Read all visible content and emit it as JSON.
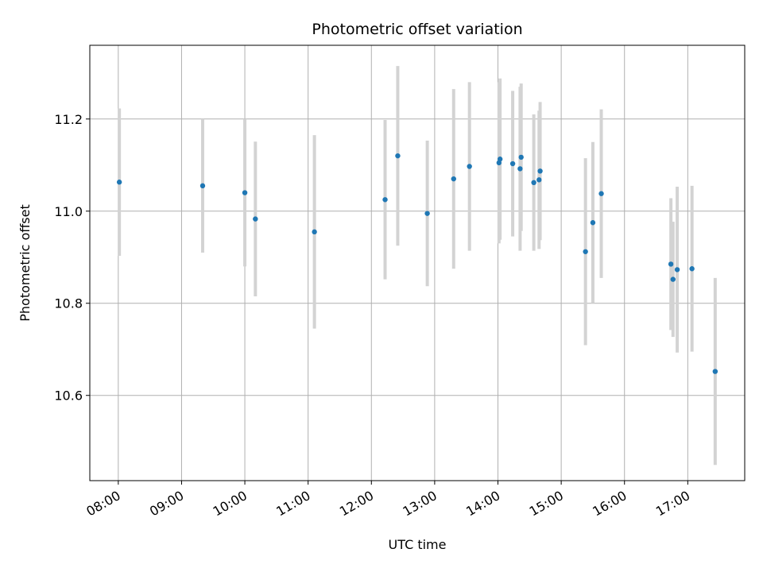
{
  "chart_data": {
    "type": "scatter",
    "title": "Photometric offset variation",
    "xlabel": "UTC time",
    "ylabel": "Photometric offset",
    "x_tick_labels": [
      "08:00",
      "09:00",
      "10:00",
      "11:00",
      "12:00",
      "13:00",
      "14:00",
      "15:00",
      "16:00",
      "17:00"
    ],
    "x_ticks": [
      "08:00",
      "09:00",
      "10:00",
      "11:00",
      "12:00",
      "13:00",
      "14:00",
      "15:00",
      "16:00",
      "17:00"
    ],
    "y_ticks": [
      10.6,
      10.8,
      11.0,
      11.2
    ],
    "y_tick_labels": [
      "10.6",
      "10.8",
      "11.0",
      "11.2"
    ],
    "xlim": [
      "07:33",
      "17:54"
    ],
    "ylim": [
      10.415,
      11.36
    ],
    "grid": true,
    "point_color": "#1f77b4",
    "errorbar_color": "#d3d3d3",
    "points": [
      {
        "x": "08:01",
        "y": 11.063,
        "yerr": 0.16
      },
      {
        "x": "09:20",
        "y": 11.055,
        "yerr": 0.145
      },
      {
        "x": "10:00",
        "y": 11.04,
        "yerr": 0.16
      },
      {
        "x": "10:10",
        "y": 10.983,
        "yerr": 0.168
      },
      {
        "x": "11:06",
        "y": 10.955,
        "yerr": 0.21
      },
      {
        "x": "12:13",
        "y": 11.025,
        "yerr": 0.173
      },
      {
        "x": "12:25",
        "y": 11.12,
        "yerr": 0.195
      },
      {
        "x": "12:53",
        "y": 10.995,
        "yerr": 0.158
      },
      {
        "x": "13:18",
        "y": 11.07,
        "yerr": 0.195
      },
      {
        "x": "13:33",
        "y": 11.097,
        "yerr": 0.183
      },
      {
        "x": "14:01",
        "y": 11.105,
        "yerr": 0.175
      },
      {
        "x": "14:02",
        "y": 11.113,
        "yerr": 0.175
      },
      {
        "x": "14:14",
        "y": 11.103,
        "yerr": 0.158
      },
      {
        "x": "14:21",
        "y": 11.092,
        "yerr": 0.178
      },
      {
        "x": "14:22",
        "y": 11.117,
        "yerr": 0.16
      },
      {
        "x": "14:34",
        "y": 11.062,
        "yerr": 0.148
      },
      {
        "x": "14:39",
        "y": 11.068,
        "yerr": 0.15
      },
      {
        "x": "14:40",
        "y": 11.087,
        "yerr": 0.15
      },
      {
        "x": "15:23",
        "y": 10.912,
        "yerr": 0.203
      },
      {
        "x": "15:30",
        "y": 10.975,
        "yerr": 0.175
      },
      {
        "x": "15:38",
        "y": 11.038,
        "yerr": 0.183
      },
      {
        "x": "16:44",
        "y": 10.885,
        "yerr": 0.143
      },
      {
        "x": "16:46",
        "y": 10.852,
        "yerr": 0.125
      },
      {
        "x": "16:50",
        "y": 10.873,
        "yerr": 0.18
      },
      {
        "x": "17:04",
        "y": 10.875,
        "yerr": 0.18
      },
      {
        "x": "17:26",
        "y": 10.652,
        "yerr": 0.203
      }
    ]
  }
}
